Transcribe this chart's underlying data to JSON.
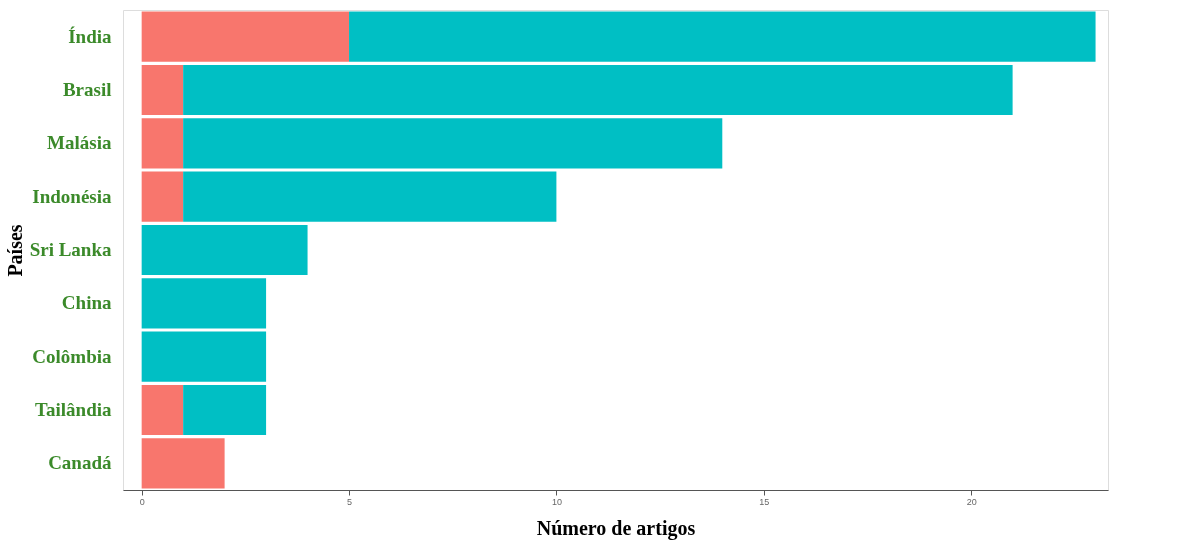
{
  "chart_data": {
    "type": "bar",
    "orientation": "horizontal",
    "stacked": true,
    "xlabel": "Número de artigos",
    "ylabel": "Países",
    "categories": [
      "Índia",
      "Brasil",
      "Malásia",
      "Indonésia",
      "Sri Lanka",
      "China",
      "Colômbia",
      "Tailândia",
      "Canadá"
    ],
    "series": [
      {
        "color": "#f8766d",
        "values": [
          5,
          1,
          1,
          1,
          0,
          0,
          0,
          1,
          2
        ]
      },
      {
        "color": "#00bfc4",
        "values": [
          18,
          20,
          13,
          9,
          4,
          3,
          3,
          2,
          0
        ]
      }
    ],
    "xlim": [
      -0.45,
      23.3
    ],
    "xticks": [
      0,
      5,
      10,
      15,
      20
    ],
    "grid": false,
    "legend": false
  }
}
